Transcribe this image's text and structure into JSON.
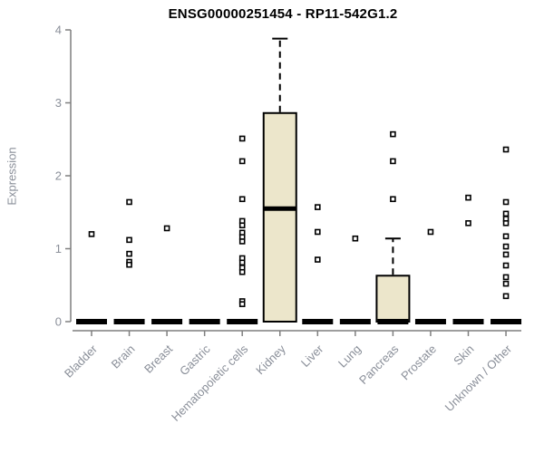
{
  "title": "ENSG00000251454 - RP11-542G1.2",
  "colors": {
    "box_fill": "#ece6cb",
    "box_stroke": "#000000",
    "median": "#000000",
    "whisker": "#000000",
    "outlier_stroke": "#000000",
    "outlier_fill": "#ffffff",
    "axis": "#7f7f7f",
    "tick_label": "#8a8f99",
    "title_color": "#000000"
  },
  "chart_data": {
    "type": "boxplot",
    "title": "ENSG00000251454 - RP11-542G1.2",
    "xlabel": "",
    "ylabel": "Expression",
    "ylim": [
      0,
      4
    ],
    "yticks": [
      0,
      1,
      2,
      3,
      4
    ],
    "grid": "off",
    "legend": "none",
    "categories": [
      "Bladder",
      "Brain",
      "Breast",
      "Gastric",
      "Hematopoietic cells",
      "Kidney",
      "Liver",
      "Lung",
      "Pancreas",
      "Prostate",
      "Skin",
      "Unknown / Other"
    ],
    "series": [
      {
        "label": "Bladder",
        "q1": 0,
        "median": 0,
        "q3": 0,
        "whisker_low": 0,
        "whisker_high": 0,
        "outliers": [
          1.2
        ]
      },
      {
        "label": "Brain",
        "q1": 0,
        "median": 0,
        "q3": 0,
        "whisker_low": 0,
        "whisker_high": 0,
        "outliers": [
          1.64,
          1.12,
          0.93,
          0.82,
          0.78
        ]
      },
      {
        "label": "Breast",
        "q1": 0,
        "median": 0,
        "q3": 0,
        "whisker_low": 0,
        "whisker_high": 0,
        "outliers": [
          1.28
        ]
      },
      {
        "label": "Gastric",
        "q1": 0,
        "median": 0,
        "q3": 0,
        "whisker_low": 0,
        "whisker_high": 0,
        "outliers": []
      },
      {
        "label": "Hematopoietic cells",
        "q1": 0,
        "median": 0,
        "q3": 0,
        "whisker_low": 0,
        "whisker_high": 0,
        "outliers": [
          2.51,
          2.2,
          1.68,
          1.38,
          1.32,
          1.22,
          1.16,
          1.1,
          0.87,
          0.81,
          0.74,
          0.68,
          0.28,
          0.24
        ]
      },
      {
        "label": "Kidney",
        "q1": 0,
        "median": 1.55,
        "q3": 2.86,
        "whisker_low": 0,
        "whisker_high": 3.88,
        "outliers": []
      },
      {
        "label": "Liver",
        "q1": 0,
        "median": 0,
        "q3": 0,
        "whisker_low": 0,
        "whisker_high": 0,
        "outliers": [
          1.57,
          1.23,
          0.85
        ]
      },
      {
        "label": "Lung",
        "q1": 0,
        "median": 0,
        "q3": 0,
        "whisker_low": 0,
        "whisker_high": 0,
        "outliers": [
          1.14
        ]
      },
      {
        "label": "Pancreas",
        "q1": 0,
        "median": 0,
        "q3": 0.63,
        "whisker_low": 0,
        "whisker_high": 1.14,
        "outliers": [
          2.57,
          2.2,
          1.68
        ]
      },
      {
        "label": "Prostate",
        "q1": 0,
        "median": 0,
        "q3": 0,
        "whisker_low": 0,
        "whisker_high": 0,
        "outliers": [
          1.23
        ]
      },
      {
        "label": "Skin",
        "q1": 0,
        "median": 0,
        "q3": 0,
        "whisker_low": 0,
        "whisker_high": 0,
        "outliers": [
          1.7,
          1.35
        ]
      },
      {
        "label": "Unknown / Other",
        "q1": 0,
        "median": 0,
        "q3": 0,
        "whisker_low": 0,
        "whisker_high": 0,
        "outliers": [
          2.36,
          1.64,
          1.48,
          1.41,
          1.35,
          1.17,
          1.03,
          0.92,
          0.77,
          0.61,
          0.52,
          0.35
        ]
      }
    ]
  }
}
